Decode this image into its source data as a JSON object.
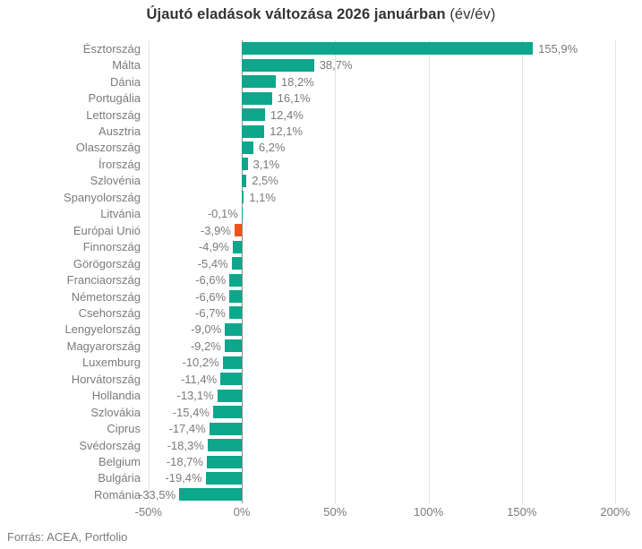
{
  "title": {
    "main": "Újautó eladások változása 2026 januárban",
    "suffix": " (év/év)"
  },
  "source": "Forrás: ACEA, Portfolio",
  "colors": {
    "bar_default": "#0ca78c",
    "bar_highlight": "#f0521d",
    "gridline": "#e2e2e2",
    "zero_line": "#8c8c8c",
    "label_text": "#7b7b7b",
    "title_text": "#333333"
  },
  "chart_data": {
    "type": "bar",
    "orientation": "horizontal",
    "title": "Újautó eladások változása 2026 januárban (év/év)",
    "xlabel": "",
    "ylabel": "",
    "xlim": [
      -50,
      200
    ],
    "grid": "vertical-only",
    "legend": "none",
    "highlight_category": "Európai Unió",
    "categories": [
      "Észtország",
      "Málta",
      "Dánia",
      "Portugália",
      "Lettország",
      "Ausztria",
      "Olaszország",
      "Írország",
      "Szlovénia",
      "Spanyolország",
      "Litvánia",
      "Európai Unió",
      "Finnország",
      "Görögország",
      "Franciaország",
      "Németország",
      "Csehország",
      "Lengyelország",
      "Magyarország",
      "Luxemburg",
      "Horvátország",
      "Hollandia",
      "Szlovákia",
      "Ciprus",
      "Svédország",
      "Belgium",
      "Bulgária",
      "Románia"
    ],
    "values": [
      155.9,
      38.7,
      18.2,
      16.1,
      12.4,
      12.1,
      6.2,
      3.1,
      2.5,
      1.1,
      -0.1,
      -3.9,
      -4.9,
      -5.4,
      -6.6,
      -6.6,
      -6.7,
      -9.0,
      -9.2,
      -10.2,
      -11.4,
      -13.1,
      -15.4,
      -17.4,
      -18.3,
      -18.7,
      -19.4,
      -33.5
    ],
    "value_labels": [
      "155,9%",
      "38,7%",
      "18,2%",
      "16,1%",
      "12,4%",
      "12,1%",
      "6,2%",
      "3,1%",
      "2,5%",
      "1,1%",
      "-0,1%",
      "-3,9%",
      "-4,9%",
      "-5,4%",
      "-6,6%",
      "-6,6%",
      "-6,7%",
      "-9,0%",
      "-9,2%",
      "-10,2%",
      "-11,4%",
      "-13,1%",
      "-15,4%",
      "-17,4%",
      "-18,3%",
      "-18,7%",
      "-19,4%",
      "-33,5%"
    ],
    "xticks": [
      {
        "value": -50,
        "label": "-50%"
      },
      {
        "value": 0,
        "label": "0%"
      },
      {
        "value": 50,
        "label": "50%"
      },
      {
        "value": 100,
        "label": "100%"
      },
      {
        "value": 150,
        "label": "150%"
      },
      {
        "value": 200,
        "label": "200%"
      }
    ]
  }
}
